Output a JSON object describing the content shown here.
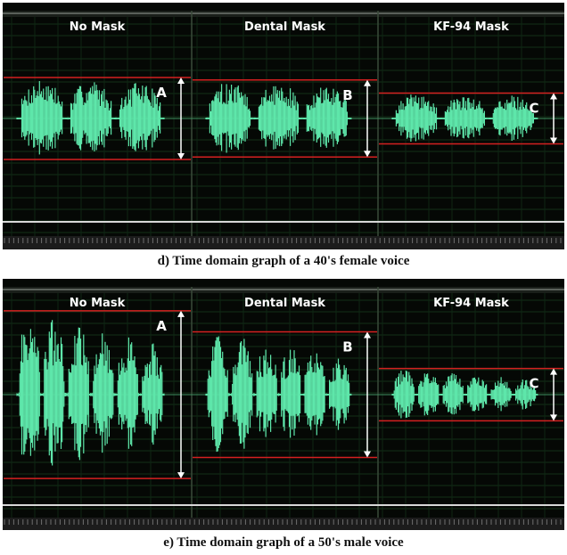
{
  "chart_data": [
    {
      "type": "line",
      "caption": "d) Time domain graph of a 40's female voice",
      "panels": [
        {
          "title": "No Mask",
          "marker": "A",
          "amplitude": 0.5
        },
        {
          "title": "Dental Mask",
          "marker": "B",
          "amplitude": 0.47
        },
        {
          "title": "KF-94 Mask",
          "marker": "C",
          "amplitude": 0.31
        }
      ],
      "waveform_color": "#5EE6AA",
      "boundary_color": "#D42020"
    },
    {
      "type": "line",
      "caption": "e) Time domain graph of a 50's male voice",
      "panels": [
        {
          "title": "No Mask",
          "marker": "A",
          "amplitude": 0.96
        },
        {
          "title": "Dental Mask",
          "marker": "B",
          "amplitude": 0.72
        },
        {
          "title": "KF-94 Mask",
          "marker": "C",
          "amplitude": 0.3
        }
      ],
      "waveform_color": "#5EE6AA",
      "boundary_color": "#D42020"
    }
  ]
}
